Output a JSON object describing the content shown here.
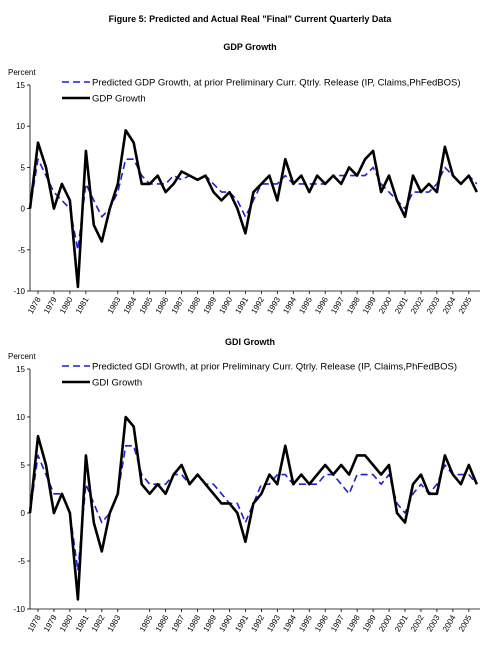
{
  "title": "Figure 5: Predicted and Actual Real \"Final\" Current Quarterly Data",
  "chart_data": [
    {
      "type": "line",
      "title": "GDP Growth",
      "y_label": "Percent",
      "x": [
        1977.5,
        1978,
        1978.5,
        1979,
        1979.5,
        1980,
        1980.5,
        1981,
        1981.5,
        1982,
        1982.5,
        1983,
        1983.5,
        1984,
        1984.5,
        1985,
        1985.5,
        1986,
        1986.5,
        1987,
        1987.5,
        1988,
        1988.5,
        1989,
        1989.5,
        1990,
        1990.5,
        1991,
        1991.5,
        1992,
        1992.5,
        1993,
        1993.5,
        1994,
        1994.5,
        1995,
        1995.5,
        1996,
        1996.5,
        1997,
        1997.5,
        1998,
        1998.5,
        1999,
        1999.5,
        2000,
        2000.5,
        2001,
        2001.5,
        2002,
        2002.5,
        2003,
        2003.5,
        2004,
        2004.5,
        2005,
        2005.5
      ],
      "series": [
        {
          "name": "Predicted GDP Growth, at prior Preliminary Curr. Qtrly. Release (IP, Claims,PhFedBOS)",
          "color": "#1f1fd0",
          "dash": true,
          "values": [
            0,
            6,
            4,
            2,
            1,
            0,
            -5,
            3,
            1,
            -1,
            0,
            2,
            6,
            6,
            4,
            3,
            3,
            3,
            4,
            3.5,
            4,
            3.5,
            4,
            3,
            2,
            2,
            1,
            -1,
            1,
            3,
            3,
            3,
            4,
            3,
            3,
            3,
            3,
            3,
            4,
            4,
            4,
            4,
            4,
            5,
            3,
            2,
            1,
            0,
            2,
            2,
            2,
            3,
            5,
            4,
            3,
            4,
            3
          ]
        },
        {
          "name": "GDP Growth",
          "color": "#000000",
          "dash": false,
          "values": [
            0,
            8,
            5,
            0,
            3,
            1,
            -9.5,
            7,
            -2,
            -4,
            0,
            3,
            9.5,
            8,
            3,
            3,
            4,
            2,
            3,
            4.5,
            4,
            3.5,
            4,
            2,
            1,
            2,
            0,
            -3,
            2,
            3,
            4,
            1,
            6,
            3,
            4,
            2,
            4,
            3,
            4,
            3,
            5,
            4,
            6,
            7,
            2,
            4,
            1,
            -1,
            4,
            2,
            3,
            2,
            7.5,
            4,
            3,
            4,
            2
          ]
        }
      ],
      "xlim": [
        1977.5,
        2005.7
      ],
      "xticks": [
        1978,
        1979,
        1980,
        1981,
        1983,
        1984,
        1985,
        1986,
        1987,
        1988,
        1989,
        1990,
        1991,
        1992,
        1993,
        1994,
        1995,
        1996,
        1997,
        1998,
        1999,
        2000,
        2001,
        2002,
        2003,
        2004,
        2005
      ],
      "ylim": [
        -10,
        15
      ],
      "yticks": [
        -10,
        -5,
        0,
        5,
        10,
        15
      ],
      "legend": "upper left"
    },
    {
      "type": "line",
      "title": "GDI Growth",
      "y_label": "Percent",
      "x": [
        1977.5,
        1978,
        1978.5,
        1979,
        1979.5,
        1980,
        1980.5,
        1981,
        1981.5,
        1982,
        1982.5,
        1983,
        1983.5,
        1984,
        1984.5,
        1985,
        1985.5,
        1986,
        1986.5,
        1987,
        1987.5,
        1988,
        1988.5,
        1989,
        1989.5,
        1990,
        1990.5,
        1991,
        1991.5,
        1992,
        1992.5,
        1993,
        1993.5,
        1994,
        1994.5,
        1995,
        1995.5,
        1996,
        1996.5,
        1997,
        1997.5,
        1998,
        1998.5,
        1999,
        1999.5,
        2000,
        2000.5,
        2001,
        2001.5,
        2002,
        2002.5,
        2003,
        2003.5,
        2004,
        2004.5,
        2005,
        2005.5
      ],
      "series": [
        {
          "name": "Predicted GDI Growth, at prior Preliminary Curr. Qtrly. Release (IP, Claims,PhFedBOS)",
          "color": "#1f1fd0",
          "dash": true,
          "values": [
            0,
            6,
            4,
            2,
            2,
            0,
            -6,
            3,
            1,
            -1,
            0,
            2,
            7,
            7,
            4,
            3,
            3,
            3,
            4,
            4,
            3,
            4,
            3,
            3,
            2,
            1,
            1,
            -1,
            1,
            3,
            3,
            4,
            4,
            3,
            3,
            3,
            3,
            4,
            4,
            3,
            2,
            4,
            4,
            4,
            3,
            4,
            1,
            0,
            2,
            3,
            2,
            3,
            5,
            4,
            4,
            4,
            3
          ]
        },
        {
          "name": "GDI Growth",
          "color": "#000000",
          "dash": false,
          "values": [
            0,
            8,
            5,
            0,
            2,
            0,
            -9,
            6,
            -1,
            -4,
            0,
            2,
            10,
            9,
            3,
            2,
            3,
            2,
            4,
            5,
            3,
            4,
            3,
            2,
            1,
            1,
            0,
            -3,
            1,
            2,
            4,
            3,
            7,
            3,
            4,
            3,
            4,
            5,
            4,
            5,
            4,
            6,
            6,
            5,
            4,
            5,
            0,
            -1,
            3,
            4,
            2,
            2,
            6,
            4,
            3,
            5,
            3
          ]
        }
      ],
      "xlim": [
        1977.5,
        2005.7
      ],
      "xticks": [
        1978,
        1979,
        1980,
        1981,
        1982,
        1983,
        1985,
        1986,
        1987,
        1988,
        1989,
        1990,
        1991,
        1992,
        1993,
        1994,
        1995,
        1996,
        1997,
        1998,
        1999,
        2000,
        2001,
        2002,
        2003,
        2004,
        2005
      ],
      "ylim": [
        -10,
        15
      ],
      "yticks": [
        -10,
        -5,
        0,
        5,
        10,
        15
      ],
      "legend": "upper left"
    }
  ]
}
